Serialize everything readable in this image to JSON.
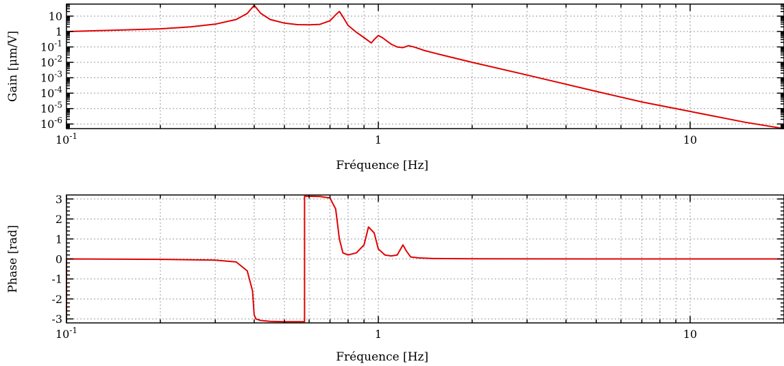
{
  "chart_data": [
    {
      "type": "line",
      "panel": "gain",
      "xscale": "log",
      "yscale": "log",
      "xlim": [
        0.1,
        20
      ],
      "ylim": [
        5e-07,
        60
      ],
      "xlabel": "Fréquence [Hz]",
      "ylabel": "Gain [μm/V]",
      "grid": true,
      "xticks": [
        {
          "value": 0.1,
          "label": "10",
          "sup": "-1"
        },
        {
          "value": 1,
          "label": "1",
          "sup": ""
        },
        {
          "value": 10,
          "label": "10",
          "sup": ""
        }
      ],
      "yticks": [
        {
          "value": 10,
          "label": "10",
          "sup": ""
        },
        {
          "value": 1,
          "label": "1",
          "sup": ""
        },
        {
          "value": 0.1,
          "label": "10",
          "sup": "-1"
        },
        {
          "value": 0.01,
          "label": "10",
          "sup": "-2"
        },
        {
          "value": 0.001,
          "label": "10",
          "sup": "-3"
        },
        {
          "value": 0.0001,
          "label": "10",
          "sup": "-4"
        },
        {
          "value": 1e-05,
          "label": "10",
          "sup": "-5"
        },
        {
          "value": 1e-06,
          "label": "10",
          "sup": "-6"
        }
      ],
      "series": [
        {
          "color": "#e00000",
          "x": [
            0.1,
            0.15,
            0.2,
            0.25,
            0.3,
            0.35,
            0.38,
            0.4,
            0.42,
            0.45,
            0.5,
            0.55,
            0.6,
            0.65,
            0.7,
            0.73,
            0.75,
            0.77,
            0.8,
            0.85,
            0.9,
            0.95,
            0.97,
            1.0,
            1.03,
            1.1,
            1.15,
            1.2,
            1.25,
            1.3,
            1.4,
            1.6,
            2,
            3,
            5,
            7,
            10,
            15,
            20
          ],
          "y": [
            1.0,
            1.25,
            1.5,
            2.0,
            3.0,
            6.0,
            15.0,
            50.0,
            15.0,
            6.0,
            3.5,
            2.8,
            2.7,
            2.9,
            5.0,
            12.0,
            20.0,
            9.0,
            2.5,
            0.9,
            0.4,
            0.18,
            0.3,
            0.55,
            0.4,
            0.15,
            0.1,
            0.09,
            0.12,
            0.1,
            0.06,
            0.03,
            0.01,
            0.0015,
            0.00013,
            2.7e-05,
            6.5e-06,
            1.3e-06,
            4.2e-07
          ]
        }
      ]
    },
    {
      "type": "line",
      "panel": "phase",
      "xscale": "log",
      "yscale": "linear",
      "xlim": [
        0.1,
        20
      ],
      "ylim": [
        -3.2,
        3.2
      ],
      "xlabel": "Fréquence [Hz]",
      "ylabel": "Phase [rad]",
      "grid": true,
      "xticks": [
        {
          "value": 0.1,
          "label": "10",
          "sup": "-1"
        },
        {
          "value": 1,
          "label": "1",
          "sup": ""
        },
        {
          "value": 10,
          "label": "10",
          "sup": ""
        }
      ],
      "yticks": [
        {
          "value": 3,
          "label": "3",
          "sup": ""
        },
        {
          "value": 2,
          "label": "2",
          "sup": ""
        },
        {
          "value": 1,
          "label": "1",
          "sup": ""
        },
        {
          "value": 0,
          "label": "0",
          "sup": ""
        },
        {
          "value": -1,
          "label": "-1",
          "sup": ""
        },
        {
          "value": -2,
          "label": "-2",
          "sup": ""
        },
        {
          "value": -3,
          "label": "-3",
          "sup": ""
        }
      ],
      "series": [
        {
          "color": "#e00000",
          "x": [
            0.1,
            0.1,
            0.1,
            0.2,
            0.3,
            0.35,
            0.38,
            0.395,
            0.4,
            0.405,
            0.42,
            0.45,
            0.5,
            0.58,
            0.58,
            0.65,
            0.7,
            0.73,
            0.75,
            0.77,
            0.8,
            0.85,
            0.9,
            0.93,
            0.97,
            1.0,
            1.05,
            1.1,
            1.15,
            1.2,
            1.23,
            1.27,
            1.35,
            1.5,
            2,
            5,
            10,
            20
          ],
          "y": [
            -3.14,
            0.0,
            0.0,
            -0.02,
            -0.06,
            -0.15,
            -0.6,
            -1.6,
            -2.8,
            -3.0,
            -3.08,
            -3.12,
            -3.14,
            -3.14,
            3.14,
            3.12,
            3.05,
            2.5,
            1.0,
            0.3,
            0.2,
            0.3,
            0.7,
            1.6,
            1.3,
            0.5,
            0.2,
            0.15,
            0.2,
            0.7,
            0.4,
            0.1,
            0.05,
            0.02,
            0.01,
            0.0,
            0.0,
            0.0
          ]
        }
      ]
    }
  ]
}
